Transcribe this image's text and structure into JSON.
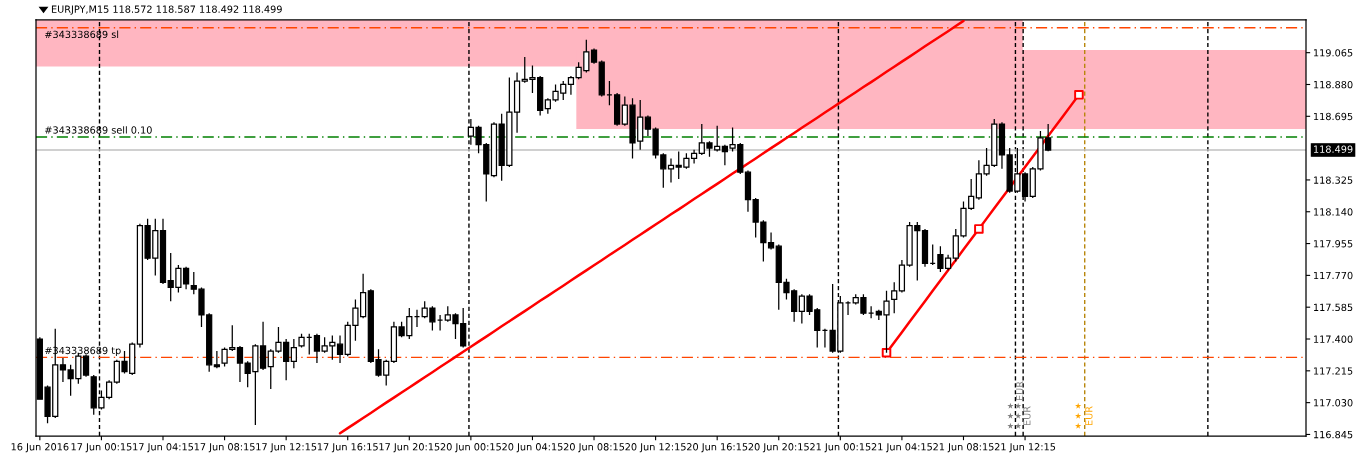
{
  "chart_data": {
    "type": "candlestick",
    "title": "EURJPY,M15 118.572 118.587 118.492 118.499",
    "color": "#000000",
    "categories": [
      "16 Jun 2016",
      null,
      null,
      null,
      null,
      null,
      null,
      null,
      "17 Jun 00:15",
      null,
      null,
      null,
      null,
      null,
      null,
      null,
      "17 Jun 04:15",
      null,
      null,
      null,
      null,
      null,
      null,
      null,
      "17 Jun 08:15",
      null,
      null,
      null,
      null,
      null,
      null,
      null,
      "17 Jun 12:15",
      null,
      null,
      null,
      null,
      null,
      null,
      null,
      "17 Jun 16:15",
      null,
      null,
      null,
      null,
      null,
      null,
      null,
      "17 Jun 20:15",
      null,
      null,
      null,
      null,
      null,
      null,
      null,
      "20 Jun 00:15",
      null,
      null,
      null,
      null,
      null,
      null,
      null,
      "20 Jun 04:15",
      null,
      null,
      null,
      null,
      null,
      null,
      null,
      "20 Jun 08:15",
      null,
      null,
      null,
      null,
      null,
      null,
      null,
      "20 Jun 12:15",
      null,
      null,
      null,
      null,
      null,
      null,
      null,
      "20 Jun 16:15",
      null,
      null,
      null,
      null,
      null,
      null,
      null,
      "20 Jun 20:15",
      null,
      null,
      null,
      null,
      null,
      null,
      null,
      "21 Jun 00:15",
      null,
      null,
      null,
      null,
      null,
      null,
      null,
      "21 Jun 04:15",
      null,
      null,
      null,
      null,
      null,
      null,
      null,
      "21 Jun 08:15",
      null,
      null,
      null,
      null,
      null,
      null,
      null,
      "21 Jun 12:15",
      null,
      null,
      null,
      null,
      null,
      null,
      null,
      null,
      null,
      null,
      null,
      null,
      null,
      null,
      null,
      null,
      null,
      null,
      null,
      null,
      null,
      null,
      null,
      null,
      null,
      null,
      null,
      null,
      null,
      null,
      null,
      null,
      null,
      null,
      null,
      null
    ],
    "ohlc": [
      [
        117.4,
        117.41,
        117.05,
        117.05
      ],
      [
        117.12,
        117.13,
        116.91,
        116.95
      ],
      [
        116.95,
        117.46,
        116.94,
        117.25
      ],
      [
        117.25,
        117.29,
        117.15,
        117.22
      ],
      [
        117.22,
        117.25,
        117.07,
        117.17
      ],
      [
        117.17,
        117.32,
        117.14,
        117.3
      ],
      [
        117.3,
        117.31,
        117.18,
        117.19
      ],
      [
        117.18,
        117.19,
        116.96,
        117.0
      ],
      [
        117.0,
        117.1,
        116.99,
        117.06
      ],
      [
        117.06,
        117.16,
        117.05,
        117.15
      ],
      [
        117.15,
        117.28,
        117.14,
        117.27
      ],
      [
        117.27,
        117.33,
        117.2,
        117.21
      ],
      [
        117.2,
        117.38,
        117.19,
        117.37
      ],
      [
        117.37,
        118.07,
        117.35,
        118.06
      ],
      [
        118.06,
        118.1,
        117.86,
        117.87
      ],
      [
        117.87,
        118.1,
        117.77,
        118.03
      ],
      [
        118.03,
        118.1,
        117.72,
        117.73
      ],
      [
        117.74,
        117.9,
        117.62,
        117.7
      ],
      [
        117.7,
        117.83,
        117.67,
        117.81
      ],
      [
        117.81,
        117.82,
        117.69,
        117.72
      ],
      [
        117.71,
        117.79,
        117.66,
        117.69
      ],
      [
        117.69,
        117.7,
        117.47,
        117.54
      ],
      [
        117.54,
        117.55,
        117.21,
        117.25
      ],
      [
        117.25,
        117.33,
        117.23,
        117.24
      ],
      [
        117.26,
        117.35,
        117.24,
        117.34
      ],
      [
        117.34,
        117.48,
        117.33,
        117.35
      ],
      [
        117.35,
        117.36,
        117.15,
        117.26
      ],
      [
        117.26,
        117.27,
        117.12,
        117.2
      ],
      [
        117.21,
        117.37,
        116.9,
        117.36
      ],
      [
        117.36,
        117.5,
        117.22,
        117.23
      ],
      [
        117.24,
        117.34,
        117.11,
        117.33
      ],
      [
        117.33,
        117.47,
        117.32,
        117.38
      ],
      [
        117.38,
        117.4,
        117.16,
        117.27
      ],
      [
        117.27,
        117.4,
        117.23,
        117.35
      ],
      [
        117.36,
        117.43,
        117.35,
        117.41
      ],
      [
        117.41,
        117.43,
        117.31,
        117.41
      ],
      [
        117.42,
        117.43,
        117.26,
        117.33
      ],
      [
        117.33,
        117.41,
        117.32,
        117.36
      ],
      [
        117.36,
        117.42,
        117.28,
        117.38
      ],
      [
        117.37,
        117.42,
        117.26,
        117.31
      ],
      [
        117.31,
        117.5,
        117.3,
        117.48
      ],
      [
        117.48,
        117.63,
        117.39,
        117.58
      ],
      [
        117.53,
        117.78,
        117.52,
        117.67
      ],
      [
        117.68,
        117.69,
        117.26,
        117.27
      ],
      [
        117.28,
        117.34,
        117.18,
        117.19
      ],
      [
        117.19,
        117.28,
        117.13,
        117.27
      ],
      [
        117.27,
        117.5,
        117.26,
        117.47
      ],
      [
        117.47,
        117.5,
        117.41,
        117.42
      ],
      [
        117.42,
        117.58,
        117.4,
        117.53
      ],
      [
        117.53,
        117.57,
        117.47,
        117.53
      ],
      [
        117.53,
        117.62,
        117.52,
        117.58
      ],
      [
        117.58,
        117.59,
        117.45,
        117.5
      ],
      [
        117.51,
        117.54,
        117.45,
        117.51
      ],
      [
        117.51,
        117.59,
        117.5,
        117.54
      ],
      [
        117.54,
        117.55,
        117.4,
        117.49
      ],
      [
        117.49,
        117.58,
        117.35,
        117.36
      ],
      [
        118.58,
        118.68,
        118.53,
        118.63
      ],
      [
        118.63,
        118.64,
        118.48,
        118.53
      ],
      [
        118.53,
        118.54,
        118.2,
        118.36
      ],
      [
        118.35,
        118.66,
        118.34,
        118.65
      ],
      [
        118.65,
        118.71,
        118.32,
        118.41
      ],
      [
        118.41,
        118.92,
        118.4,
        118.72
      ],
      [
        118.72,
        118.95,
        118.6,
        118.9
      ],
      [
        118.9,
        119.04,
        118.89,
        118.91
      ],
      [
        118.91,
        118.99,
        118.83,
        118.92
      ],
      [
        118.92,
        118.93,
        118.7,
        118.73
      ],
      [
        118.74,
        118.8,
        118.71,
        118.79
      ],
      [
        118.79,
        118.88,
        118.78,
        118.84
      ],
      [
        118.83,
        118.9,
        118.79,
        118.88
      ],
      [
        118.88,
        118.93,
        118.82,
        118.92
      ],
      [
        118.92,
        119.01,
        118.91,
        118.98
      ],
      [
        118.96,
        119.14,
        118.95,
        119.07
      ],
      [
        119.08,
        119.09,
        119.0,
        119.01
      ],
      [
        119.01,
        119.02,
        118.81,
        118.82
      ],
      [
        118.82,
        118.9,
        118.76,
        118.82
      ],
      [
        118.82,
        118.83,
        118.64,
        118.65
      ],
      [
        118.65,
        118.81,
        118.64,
        118.76
      ],
      [
        118.76,
        118.8,
        118.45,
        118.54
      ],
      [
        118.55,
        118.79,
        118.5,
        118.69
      ],
      [
        118.69,
        118.7,
        118.58,
        118.62
      ],
      [
        118.62,
        118.63,
        118.45,
        118.47
      ],
      [
        118.47,
        118.48,
        118.28,
        118.39
      ],
      [
        118.39,
        118.45,
        118.31,
        118.41
      ],
      [
        118.41,
        118.49,
        118.33,
        118.4
      ],
      [
        118.4,
        118.48,
        118.39,
        118.45
      ],
      [
        118.45,
        118.5,
        118.42,
        118.48
      ],
      [
        118.48,
        118.65,
        118.47,
        118.54
      ],
      [
        118.54,
        118.55,
        118.46,
        118.51
      ],
      [
        118.5,
        118.64,
        118.49,
        118.52
      ],
      [
        118.52,
        118.53,
        118.41,
        118.49
      ],
      [
        118.51,
        118.63,
        118.49,
        118.53
      ],
      [
        118.53,
        118.54,
        118.36,
        118.37
      ],
      [
        118.37,
        118.38,
        118.14,
        118.21
      ],
      [
        118.21,
        118.22,
        117.99,
        118.08
      ],
      [
        118.08,
        118.09,
        117.85,
        117.96
      ],
      [
        117.96,
        118.02,
        117.92,
        117.93
      ],
      [
        117.94,
        117.95,
        117.57,
        117.73
      ],
      [
        117.73,
        117.75,
        117.63,
        117.67
      ],
      [
        117.68,
        117.69,
        117.5,
        117.56
      ],
      [
        117.56,
        117.66,
        117.49,
        117.65
      ],
      [
        117.65,
        117.66,
        117.54,
        117.56
      ],
      [
        117.57,
        117.58,
        117.35,
        117.45
      ],
      [
        117.45,
        117.46,
        117.35,
        117.45
      ],
      [
        117.45,
        117.72,
        117.32,
        117.33
      ],
      [
        117.33,
        117.65,
        117.32,
        117.61
      ],
      [
        117.61,
        117.62,
        117.54,
        117.61
      ],
      [
        117.61,
        117.66,
        117.6,
        117.64
      ],
      [
        117.64,
        117.66,
        117.54,
        117.55
      ],
      [
        117.55,
        117.59,
        117.52,
        117.55
      ],
      [
        117.56,
        117.57,
        117.51,
        117.54
      ],
      [
        117.54,
        117.68,
        117.32,
        117.62
      ],
      [
        117.63,
        117.73,
        117.55,
        117.68
      ],
      [
        117.68,
        117.86,
        117.67,
        117.83
      ],
      [
        117.83,
        118.08,
        117.82,
        118.06
      ],
      [
        118.06,
        118.08,
        117.74,
        118.03
      ],
      [
        118.03,
        118.04,
        117.82,
        117.84
      ],
      [
        117.84,
        117.95,
        117.83,
        117.84
      ],
      [
        117.89,
        117.94,
        117.79,
        117.81
      ],
      [
        117.81,
        117.89,
        117.8,
        117.87
      ],
      [
        117.87,
        118.04,
        117.85,
        118.0
      ],
      [
        118.0,
        118.2,
        117.99,
        118.16
      ],
      [
        118.16,
        118.33,
        118.15,
        118.23
      ],
      [
        118.22,
        118.44,
        118.21,
        118.36
      ],
      [
        118.36,
        118.51,
        118.35,
        118.41
      ],
      [
        118.41,
        118.68,
        118.4,
        118.65
      ],
      [
        118.65,
        118.66,
        118.39,
        118.47
      ],
      [
        118.47,
        118.51,
        118.25,
        118.26
      ],
      [
        118.26,
        118.51,
        118.25,
        118.36
      ],
      [
        118.36,
        118.37,
        118.2,
        118.23
      ],
      [
        118.23,
        118.4,
        118.22,
        118.39
      ],
      [
        118.39,
        118.61,
        118.38,
        118.57
      ],
      [
        118.57,
        118.65,
        118.492,
        118.499
      ],
      null,
      null,
      null,
      null,
      null,
      null,
      null,
      null,
      null,
      null,
      null,
      null,
      null,
      null,
      null,
      null,
      null,
      null,
      null,
      null,
      null,
      null,
      null,
      null,
      null,
      null,
      null,
      null,
      null,
      null,
      null,
      null,
      null
    ],
    "ylim": [
      116.836,
      119.255
    ],
    "yticks": [
      116.845,
      {
        "value": 117.03,
        "label": "117.030"
      },
      117.215,
      {
        "value": 117.4,
        "label": "117.400"
      },
      117.585,
      {
        "value": 117.77,
        "label": "117.770"
      },
      117.955,
      {
        "value": 118.14,
        "label": "118.140"
      },
      118.325,
      118.695,
      {
        "value": 118.88,
        "label": "118.880"
      },
      119.065
    ],
    "bands": [
      {
        "axis": "y",
        "from": 118.985,
        "to": 119.255,
        "color": "#ffb6c1"
      },
      {
        "axis": "y",
        "from": 118.621,
        "to": 119.08,
        "color": "#ffb6c1"
      }
    ],
    "series": [
      {
        "type": "line",
        "color": "#ff0000",
        "marker": "none",
        "values": [
          null,
          null,
          null,
          null,
          null,
          null,
          null,
          null,
          null,
          null,
          null,
          null,
          null,
          null,
          null,
          null,
          null,
          null,
          null,
          null,
          null,
          null,
          null,
          null,
          null,
          null,
          null,
          null,
          null,
          null,
          null,
          null,
          null,
          null,
          null,
          null,
          null,
          null,
          null,
          116.852,
          116.882,
          116.911,
          116.941,
          116.97,
          117.0,
          117.03,
          117.059,
          117.089,
          117.118,
          117.148,
          117.178,
          117.207,
          117.237,
          117.266,
          117.296,
          117.326,
          117.355,
          117.385,
          117.414,
          117.444,
          117.474,
          117.503,
          117.533,
          117.562,
          117.592,
          117.622,
          117.651,
          117.681,
          117.71,
          117.74,
          117.77,
          117.799,
          117.829,
          117.858,
          117.888,
          117.918,
          117.947,
          117.977,
          118.006,
          118.036,
          118.066,
          118.095,
          118.125,
          118.154,
          118.184,
          118.214,
          118.243,
          118.273,
          118.302,
          118.332,
          118.362,
          118.391,
          118.421,
          118.45,
          118.48,
          118.51,
          118.539,
          118.569,
          118.598,
          118.628,
          118.658,
          118.687,
          118.717,
          118.746,
          118.776,
          118.806,
          118.835,
          118.865,
          118.894,
          118.924,
          118.954,
          118.983,
          119.013,
          119.042,
          119.072,
          119.102,
          119.131,
          119.161,
          119.19,
          119.22,
          119.25,
          null,
          null,
          null,
          null,
          null,
          null,
          null,
          null,
          null,
          null,
          null,
          null,
          null,
          null,
          null,
          null,
          null,
          null,
          null,
          null,
          null,
          null,
          null,
          null,
          null,
          null,
          null,
          null,
          null,
          null,
          null,
          null,
          null,
          null,
          null,
          null,
          null,
          null,
          null,
          null,
          null,
          null,
          null,
          null
        ]
      },
      {
        "type": "line",
        "color": "#ff0000",
        "marker": "none",
        "values": [
          null,
          null,
          null,
          null,
          null,
          null,
          null,
          null,
          null,
          null,
          null,
          null,
          null,
          null,
          null,
          null,
          null,
          null,
          null,
          null,
          null,
          null,
          null,
          null,
          null,
          null,
          null,
          null,
          null,
          null,
          null,
          null,
          null,
          null,
          null,
          null,
          null,
          null,
          null,
          null,
          null,
          null,
          null,
          null,
          null,
          null,
          null,
          null,
          null,
          null,
          null,
          null,
          null,
          null,
          null,
          null,
          null,
          null,
          null,
          null,
          null,
          null,
          null,
          null,
          null,
          null,
          null,
          null,
          null,
          null,
          null,
          null,
          null,
          null,
          null,
          null,
          null,
          null,
          null,
          null,
          null,
          null,
          null,
          null,
          null,
          null,
          null,
          null,
          null,
          null,
          null,
          null,
          null,
          null,
          null,
          null,
          null,
          null,
          null,
          null,
          null,
          null,
          null,
          null,
          null,
          null,
          null,
          null,
          null,
          null,
          117.32,
          117.38,
          117.44,
          117.5,
          117.56,
          117.62,
          117.68,
          117.74,
          117.8,
          117.86,
          117.92,
          117.98,
          118.04,
          118.1,
          118.16,
          118.22,
          118.28,
          118.34,
          118.4,
          118.46,
          118.52,
          118.58,
          118.64,
          118.7,
          118.76,
          118.82,
          null,
          null,
          null,
          null,
          null,
          null,
          null,
          null,
          null,
          null,
          null,
          null,
          null,
          null,
          null,
          null,
          null,
          null,
          null,
          null,
          null,
          null,
          null,
          null,
          null,
          null,
          null,
          null,
          null
        ]
      },
      {
        "type": "scatter",
        "color": "#ff0000",
        "marker": "square",
        "values": [
          null,
          null,
          null,
          null,
          null,
          null,
          null,
          null,
          null,
          null,
          null,
          null,
          null,
          null,
          null,
          null,
          null,
          null,
          null,
          null,
          null,
          null,
          null,
          null,
          null,
          null,
          null,
          null,
          null,
          null,
          null,
          null,
          null,
          null,
          null,
          null,
          null,
          null,
          null,
          null,
          null,
          null,
          null,
          null,
          null,
          null,
          null,
          null,
          null,
          null,
          null,
          null,
          null,
          null,
          null,
          null,
          null,
          null,
          null,
          null,
          null,
          null,
          null,
          null,
          null,
          null,
          null,
          null,
          null,
          null,
          null,
          null,
          null,
          null,
          null,
          null,
          null,
          null,
          null,
          null,
          null,
          null,
          null,
          null,
          null,
          null,
          null,
          null,
          null,
          null,
          null,
          null,
          null,
          null,
          null,
          null,
          null,
          null,
          null,
          null,
          null,
          null,
          null,
          null,
          null,
          null,
          null,
          null,
          null,
          null,
          117.32,
          null,
          null,
          null,
          null,
          null,
          null,
          null,
          null,
          null,
          null,
          null,
          118.04,
          null,
          null,
          null,
          null,
          null,
          null,
          null,
          null,
          null,
          null,
          null,
          null,
          118.82,
          null,
          null,
          null,
          null,
          null,
          null,
          null,
          null,
          null,
          null,
          null,
          null,
          null,
          null,
          null,
          null,
          null,
          null,
          null,
          null,
          null,
          null,
          null,
          null,
          null,
          null,
          null,
          null,
          null
        ]
      }
    ],
    "annotations": [
      "EUR",
      "EUR",
      "EUR"
    ],
    "ref_lines": [
      {
        "axis": "y",
        "value": 119.21,
        "label": "#343338689 sl",
        "color": "#ff4500",
        "line_style": "dashdot"
      },
      {
        "axis": "y",
        "value": 118.575,
        "label": "#343338689 sell 0.10",
        "color": "#008000",
        "line_style": "dashdot"
      },
      {
        "axis": "y",
        "value": 117.293,
        "label": "#343338689 tp",
        "color": "#ff4500",
        "line_style": "dashdot"
      },
      {
        "axis": "y",
        "value": 118.499,
        "label": "118.499",
        "color": "#c0c0c0",
        "line_style": "solid"
      }
    ]
  }
}
